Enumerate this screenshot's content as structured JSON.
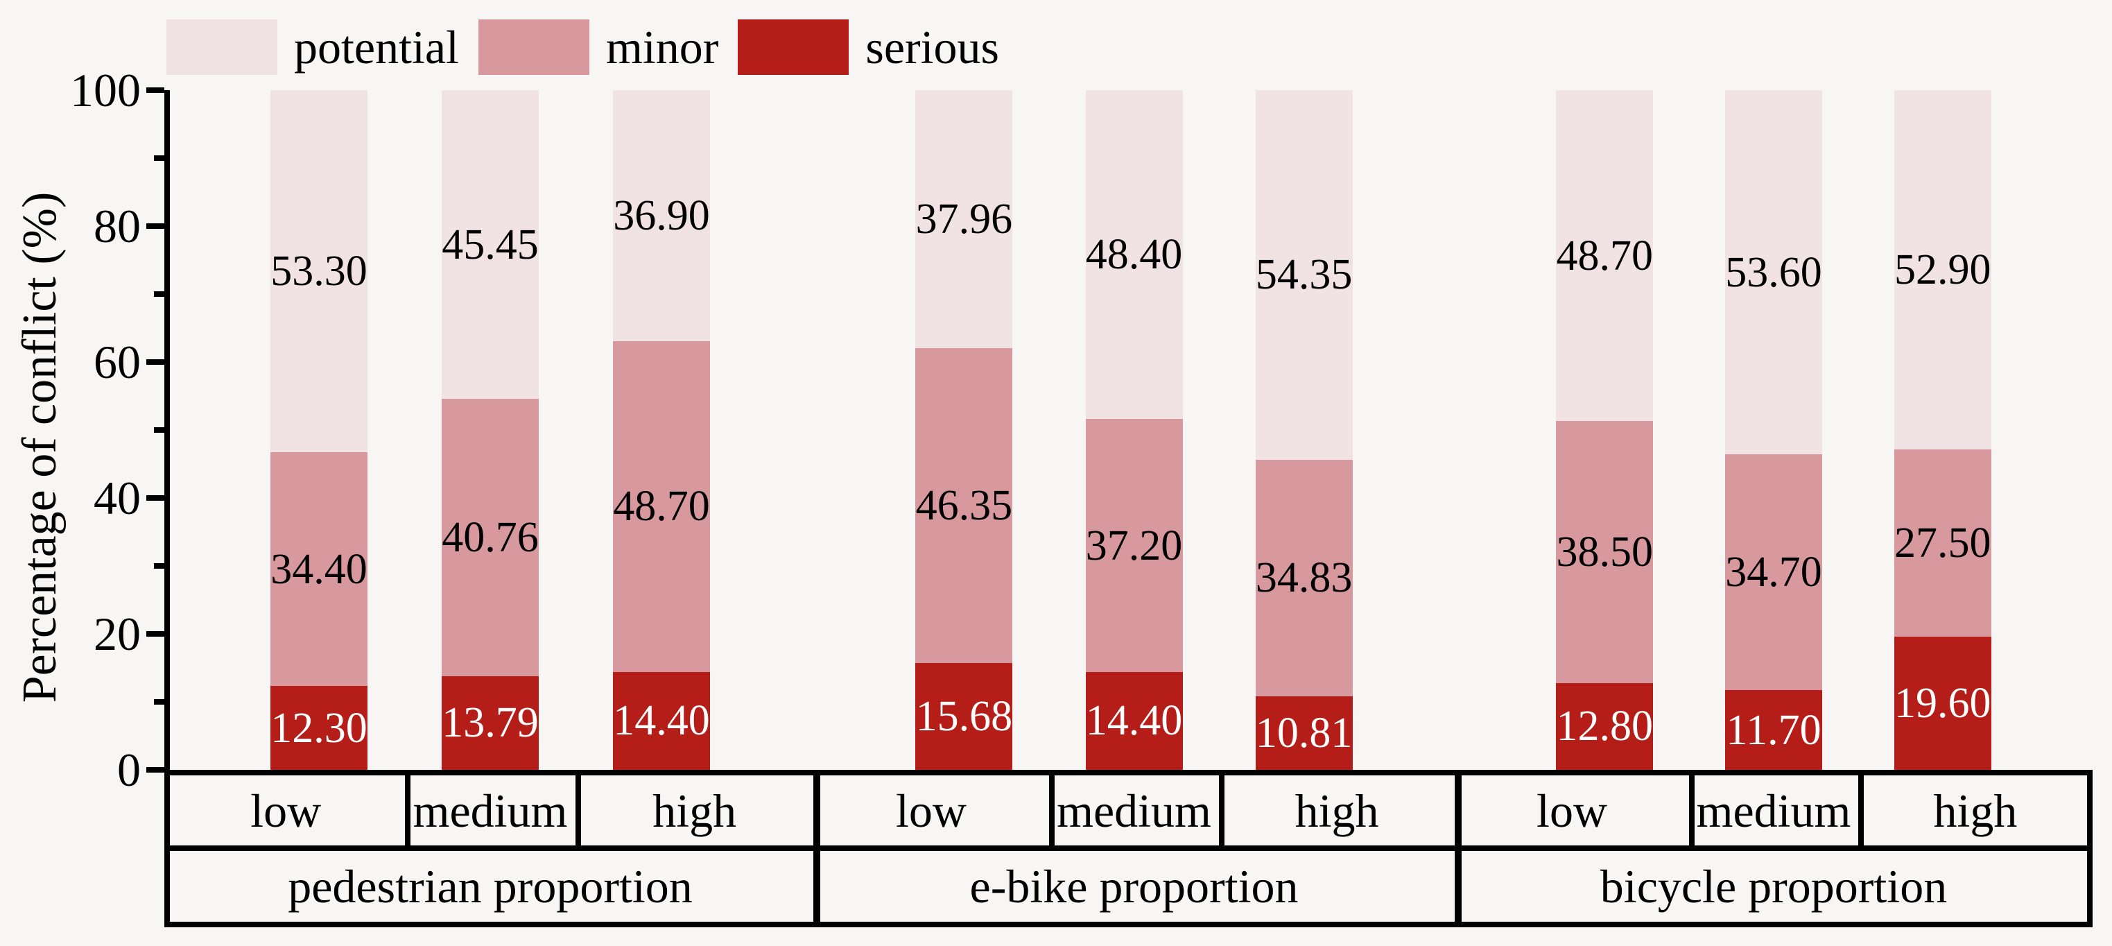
{
  "figure": {
    "background_color": "#f8f5f5"
  },
  "chart_data": {
    "type": "bar",
    "stacked": true,
    "title": "",
    "xlabel": "",
    "ylabel": "Percentage of conflict (%)",
    "ylim": [
      0,
      100
    ],
    "yticks": [
      0,
      20,
      40,
      60,
      80,
      100
    ],
    "minor_yticks": [
      10,
      30,
      50,
      70,
      90
    ],
    "grid": false,
    "legend_position": "top-left",
    "legend": [
      "potential",
      "minor",
      "serious"
    ],
    "colors": {
      "potential": "#f1e2e4",
      "minor": "#d7999d",
      "serious": "#b41d18",
      "axis": "#000000",
      "value_label": "#000000",
      "serious_value_label": "#ffffff"
    },
    "groups": [
      {
        "label": "pedestrian proportion",
        "categories": [
          "low",
          "medium",
          "high"
        ]
      },
      {
        "label": "e-bike proportion",
        "categories": [
          "low",
          "medium",
          "high"
        ]
      },
      {
        "label": "bicycle proportion",
        "categories": [
          "low",
          "medium",
          "high"
        ]
      }
    ],
    "series": [
      {
        "name": "serious",
        "values": [
          "12.30",
          "13.79",
          "14.40",
          "15.68",
          "14.40",
          "10.81",
          "12.80",
          "11.70",
          "19.60"
        ]
      },
      {
        "name": "minor",
        "values": [
          "34.40",
          "40.76",
          "48.70",
          "46.35",
          "37.20",
          "34.83",
          "38.50",
          "34.70",
          "27.50"
        ]
      },
      {
        "name": "potential",
        "values": [
          "53.30",
          "45.45",
          "36.90",
          "37.96",
          "48.40",
          "54.35",
          "48.70",
          "53.60",
          "52.90"
        ]
      }
    ]
  }
}
